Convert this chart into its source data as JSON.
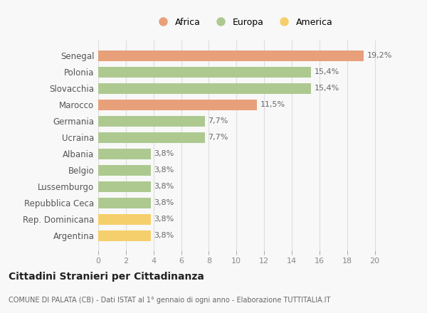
{
  "categories": [
    "Argentina",
    "Rep. Dominicana",
    "Repubblica Ceca",
    "Lussemburgo",
    "Belgio",
    "Albania",
    "Ucraina",
    "Germania",
    "Marocco",
    "Slovacchia",
    "Polonia",
    "Senegal"
  ],
  "values": [
    3.8,
    3.8,
    3.8,
    3.8,
    3.8,
    3.8,
    7.7,
    7.7,
    11.5,
    15.4,
    15.4,
    19.2
  ],
  "labels": [
    "3,8%",
    "3,8%",
    "3,8%",
    "3,8%",
    "3,8%",
    "3,8%",
    "7,7%",
    "7,7%",
    "11,5%",
    "15,4%",
    "15,4%",
    "19,2%"
  ],
  "colors": [
    "#f5cf6b",
    "#f5cf6b",
    "#adc990",
    "#adc990",
    "#adc990",
    "#adc990",
    "#adc990",
    "#adc990",
    "#e8a07a",
    "#adc990",
    "#adc990",
    "#e8a07a"
  ],
  "legend": [
    {
      "label": "Africa",
      "color": "#e8a07a"
    },
    {
      "label": "Europa",
      "color": "#adc990"
    },
    {
      "label": "America",
      "color": "#f5cf6b"
    }
  ],
  "title": "Cittadini Stranieri per Cittadinanza",
  "subtitle": "COMUNE DI PALATA (CB) - Dati ISTAT al 1° gennaio di ogni anno - Elaborazione TUTTITALIA.IT",
  "xlim": [
    0,
    21
  ],
  "xticks": [
    0,
    2,
    4,
    6,
    8,
    10,
    12,
    14,
    16,
    18,
    20
  ],
  "background_color": "#f8f8f8",
  "grid_color": "#dddddd",
  "bar_height": 0.65
}
